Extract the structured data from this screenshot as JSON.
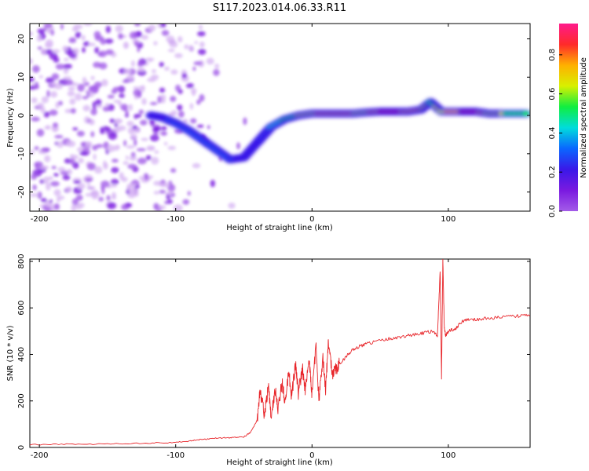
{
  "title": "S117.2023.014.06.33.R11",
  "colors": {
    "spectrum_palette": [
      "#ffffff",
      "#d8b8f4",
      "#a35ce8",
      "#7a1ae0",
      "#3a18e8",
      "#0a66ff",
      "#00dcdc",
      "#10ee40",
      "#d8f000",
      "#ffb000",
      "#ff2a2a",
      "#ff1a8c"
    ],
    "snr_line": "#e8262b",
    "axis": "#000000"
  },
  "chart_data": [
    {
      "type": "heatmap",
      "title": "",
      "xlabel": "Height of straight line (km)",
      "ylabel": "Frequency (Hz)",
      "xlim": [
        -207,
        160
      ],
      "ylim": [
        -25,
        24
      ],
      "x_ticks": [
        -200,
        -100,
        0,
        100
      ],
      "x_tick_labels": [
        "-200",
        "-100",
        "0",
        "100"
      ],
      "y_ticks": [
        -20,
        -10,
        0,
        10,
        20
      ],
      "y_tick_labels": [
        "-20",
        "-10",
        "0",
        "10",
        "20"
      ],
      "colorbar": {
        "label": "Normalized spectral amplitude",
        "range": [
          0,
          0.96
        ],
        "ticks": [
          0.0,
          0.2,
          0.4,
          0.6,
          0.8
        ],
        "tick_labels": [
          "0.0",
          "0.2",
          "0.4",
          "0.6",
          "0.8"
        ]
      },
      "signal_trace": [
        {
          "x": -118,
          "y": 0.0,
          "amp": 0.28
        },
        {
          "x": -110,
          "y": -0.5,
          "amp": 0.3
        },
        {
          "x": -100,
          "y": -2.0,
          "amp": 0.34
        },
        {
          "x": -90,
          "y": -4.0,
          "amp": 0.36
        },
        {
          "x": -80,
          "y": -6.5,
          "amp": 0.33
        },
        {
          "x": -70,
          "y": -9.0,
          "amp": 0.35
        },
        {
          "x": -60,
          "y": -11.5,
          "amp": 0.33
        },
        {
          "x": -50,
          "y": -11.0,
          "amp": 0.3
        },
        {
          "x": -40,
          "y": -7.0,
          "amp": 0.3
        },
        {
          "x": -35,
          "y": -5.0,
          "amp": 0.38
        },
        {
          "x": -30,
          "y": -3.0,
          "amp": 0.45
        },
        {
          "x": -20,
          "y": -1.0,
          "amp": 0.55
        },
        {
          "x": -10,
          "y": 0.0,
          "amp": 0.65
        },
        {
          "x": 0,
          "y": 0.5,
          "amp": 0.7
        },
        {
          "x": 10,
          "y": 0.5,
          "amp": 0.8
        },
        {
          "x": 20,
          "y": 0.5,
          "amp": 0.78
        },
        {
          "x": 30,
          "y": 0.5,
          "amp": 0.75
        },
        {
          "x": 40,
          "y": 0.8,
          "amp": 0.7
        },
        {
          "x": 50,
          "y": 1.0,
          "amp": 0.85
        },
        {
          "x": 60,
          "y": 1.0,
          "amp": 0.92
        },
        {
          "x": 70,
          "y": 1.0,
          "amp": 0.8
        },
        {
          "x": 80,
          "y": 1.5,
          "amp": 0.75
        },
        {
          "x": 87,
          "y": 3.5,
          "amp": 0.6
        },
        {
          "x": 95,
          "y": 1.0,
          "amp": 0.7
        },
        {
          "x": 110,
          "y": 1.0,
          "amp": 0.85
        },
        {
          "x": 120,
          "y": 1.0,
          "amp": 0.9
        },
        {
          "x": 130,
          "y": 0.5,
          "amp": 0.7
        },
        {
          "x": 140,
          "y": 0.5,
          "amp": 0.65
        },
        {
          "x": 160,
          "y": 0.5,
          "amp": 0.55
        }
      ]
    },
    {
      "type": "line",
      "title": "",
      "xlabel": "Height of straight line (km)",
      "ylabel": "SNR (10 * v/v)",
      "xlim": [
        -207,
        160
      ],
      "ylim": [
        0,
        810
      ],
      "x_ticks": [
        -200,
        -100,
        0,
        100
      ],
      "x_tick_labels": [
        "-200",
        "-100",
        "0",
        "100"
      ],
      "y_ticks": [
        0,
        200,
        400,
        600,
        800
      ],
      "y_tick_labels": [
        "0",
        "200",
        "400",
        "600",
        "800"
      ],
      "series": [
        {
          "x": [
            -207,
            -180,
            -150,
            -120,
            -100,
            -90,
            -80,
            -70,
            -60,
            -50,
            -45,
            -40,
            -38,
            -35,
            -32,
            -30,
            -27,
            -25,
            -22,
            -20,
            -17,
            -15,
            -12,
            -10,
            -7,
            -5,
            -2,
            0,
            3,
            5,
            8,
            10,
            12,
            15,
            18,
            20,
            25,
            30,
            35,
            40,
            50,
            60,
            70,
            80,
            88,
            92,
            94,
            95,
            96,
            97,
            98,
            100,
            105,
            110,
            115,
            120,
            130,
            140,
            150,
            160
          ],
          "y": [
            12,
            14,
            15,
            18,
            22,
            28,
            35,
            40,
            42,
            45,
            65,
            120,
            250,
            140,
            260,
            130,
            250,
            160,
            280,
            200,
            320,
            220,
            360,
            230,
            340,
            250,
            380,
            230,
            440,
            200,
            380,
            250,
            450,
            320,
            340,
            360,
            390,
            420,
            435,
            445,
            460,
            470,
            480,
            490,
            500,
            480,
            760,
            300,
            810,
            520,
            480,
            500,
            510,
            540,
            550,
            550,
            555,
            560,
            565,
            570
          ]
        }
      ]
    }
  ]
}
